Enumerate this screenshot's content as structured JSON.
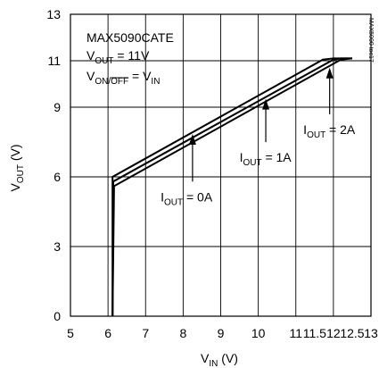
{
  "chart_data": {
    "type": "line",
    "title": "",
    "xlabel": {
      "main": "V",
      "sub": "IN",
      "unit": " (V)"
    },
    "ylabel": {
      "main": "V",
      "sub": "OUT",
      "unit": " (V)"
    },
    "xlim": [
      5,
      13
    ],
    "ylim": [
      0,
      13
    ],
    "x_ticks": [
      5,
      6,
      7,
      8,
      9,
      10,
      11,
      11.5,
      12,
      12.5,
      13
    ],
    "x_tick_labels": [
      "5",
      "6",
      "7",
      "8",
      "9",
      "10",
      "11",
      "11.5",
      "12",
      "12.5",
      "13"
    ],
    "y_ticks": [
      0,
      3,
      6,
      9,
      11,
      13
    ],
    "y_tick_labels": [
      "0",
      "3",
      "6",
      "9",
      "11",
      "13"
    ],
    "grid": true,
    "series": [
      {
        "name": "IOUT = 0A",
        "x": [
          6.12,
          6.12,
          11.72,
          12.0,
          12.5
        ],
        "y": [
          0,
          6.0,
          11.05,
          11.1,
          11.1
        ]
      },
      {
        "name": "IOUT = 1A",
        "x": [
          6.12,
          6.14,
          12.0,
          12.2,
          12.5
        ],
        "y": [
          0,
          5.8,
          11.05,
          11.1,
          11.1
        ]
      },
      {
        "name": "IOUT = 2A",
        "x": [
          6.12,
          6.16,
          12.2,
          12.5
        ],
        "y": [
          0,
          5.6,
          11.05,
          11.1
        ]
      }
    ],
    "legend_box": {
      "part_number": "MAX5090CATE",
      "vout_line": {
        "main": "V",
        "sub": "OUT",
        "rest": " = 11V"
      },
      "von_line": {
        "main": "V",
        "sub_plain": "ON/",
        "sub_over": "OFF",
        "mid": " = V",
        "sub2": "IN"
      }
    },
    "annotations": [
      {
        "series": "IOUT = 0A",
        "label_main": "I",
        "label_sub": "OUT",
        "label_rest": " = 0A",
        "arrow_x": 8.25,
        "label_x": 7.4,
        "label_y": 4.95
      },
      {
        "series": "IOUT = 1A",
        "label_main": "I",
        "label_sub": "OUT",
        "label_rest": " = 1A",
        "arrow_x": 10.2,
        "label_x": 9.5,
        "label_y": 6.65
      },
      {
        "series": "IOUT = 2A",
        "label_main": "I",
        "label_sub": "OUT",
        "label_rest": " = 2A",
        "arrow_x": 11.9,
        "label_x": 11.2,
        "label_y": 7.85
      }
    ],
    "watermark": "MAX5090 toc17"
  }
}
